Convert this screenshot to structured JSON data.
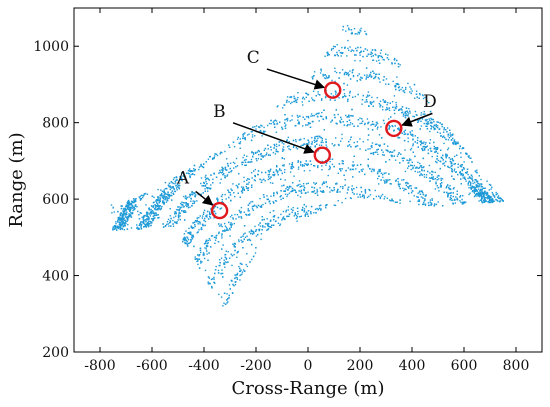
{
  "chart_data": {
    "type": "scatter",
    "title": "",
    "xlabel": "Cross-Range (m)",
    "ylabel": "Range (m)",
    "xlim": [
      -900,
      900
    ],
    "ylim": [
      200,
      1100
    ],
    "xticks": [
      -800,
      -600,
      -400,
      -200,
      0,
      200,
      400,
      600,
      800
    ],
    "yticks": [
      200,
      400,
      600,
      800,
      1000
    ],
    "grid": false,
    "point_color": "#1f9bd7",
    "marker_color": "#e0191f",
    "description_region": {
      "x_extent": [
        -760,
        760
      ],
      "y_extent": [
        285,
        1075
      ]
    },
    "annotations": [
      {
        "label": "A",
        "target": [
          -340,
          570
        ],
        "label_at": [
          -450,
          630
        ]
      },
      {
        "label": "B",
        "target": [
          55,
          715
        ],
        "label_at": [
          -310,
          805
        ]
      },
      {
        "label": "C",
        "target": [
          95,
          885
        ],
        "label_at": [
          -180,
          945
        ]
      },
      {
        "label": "D",
        "target": [
          330,
          785
        ],
        "label_at": [
          500,
          830
        ]
      }
    ]
  }
}
